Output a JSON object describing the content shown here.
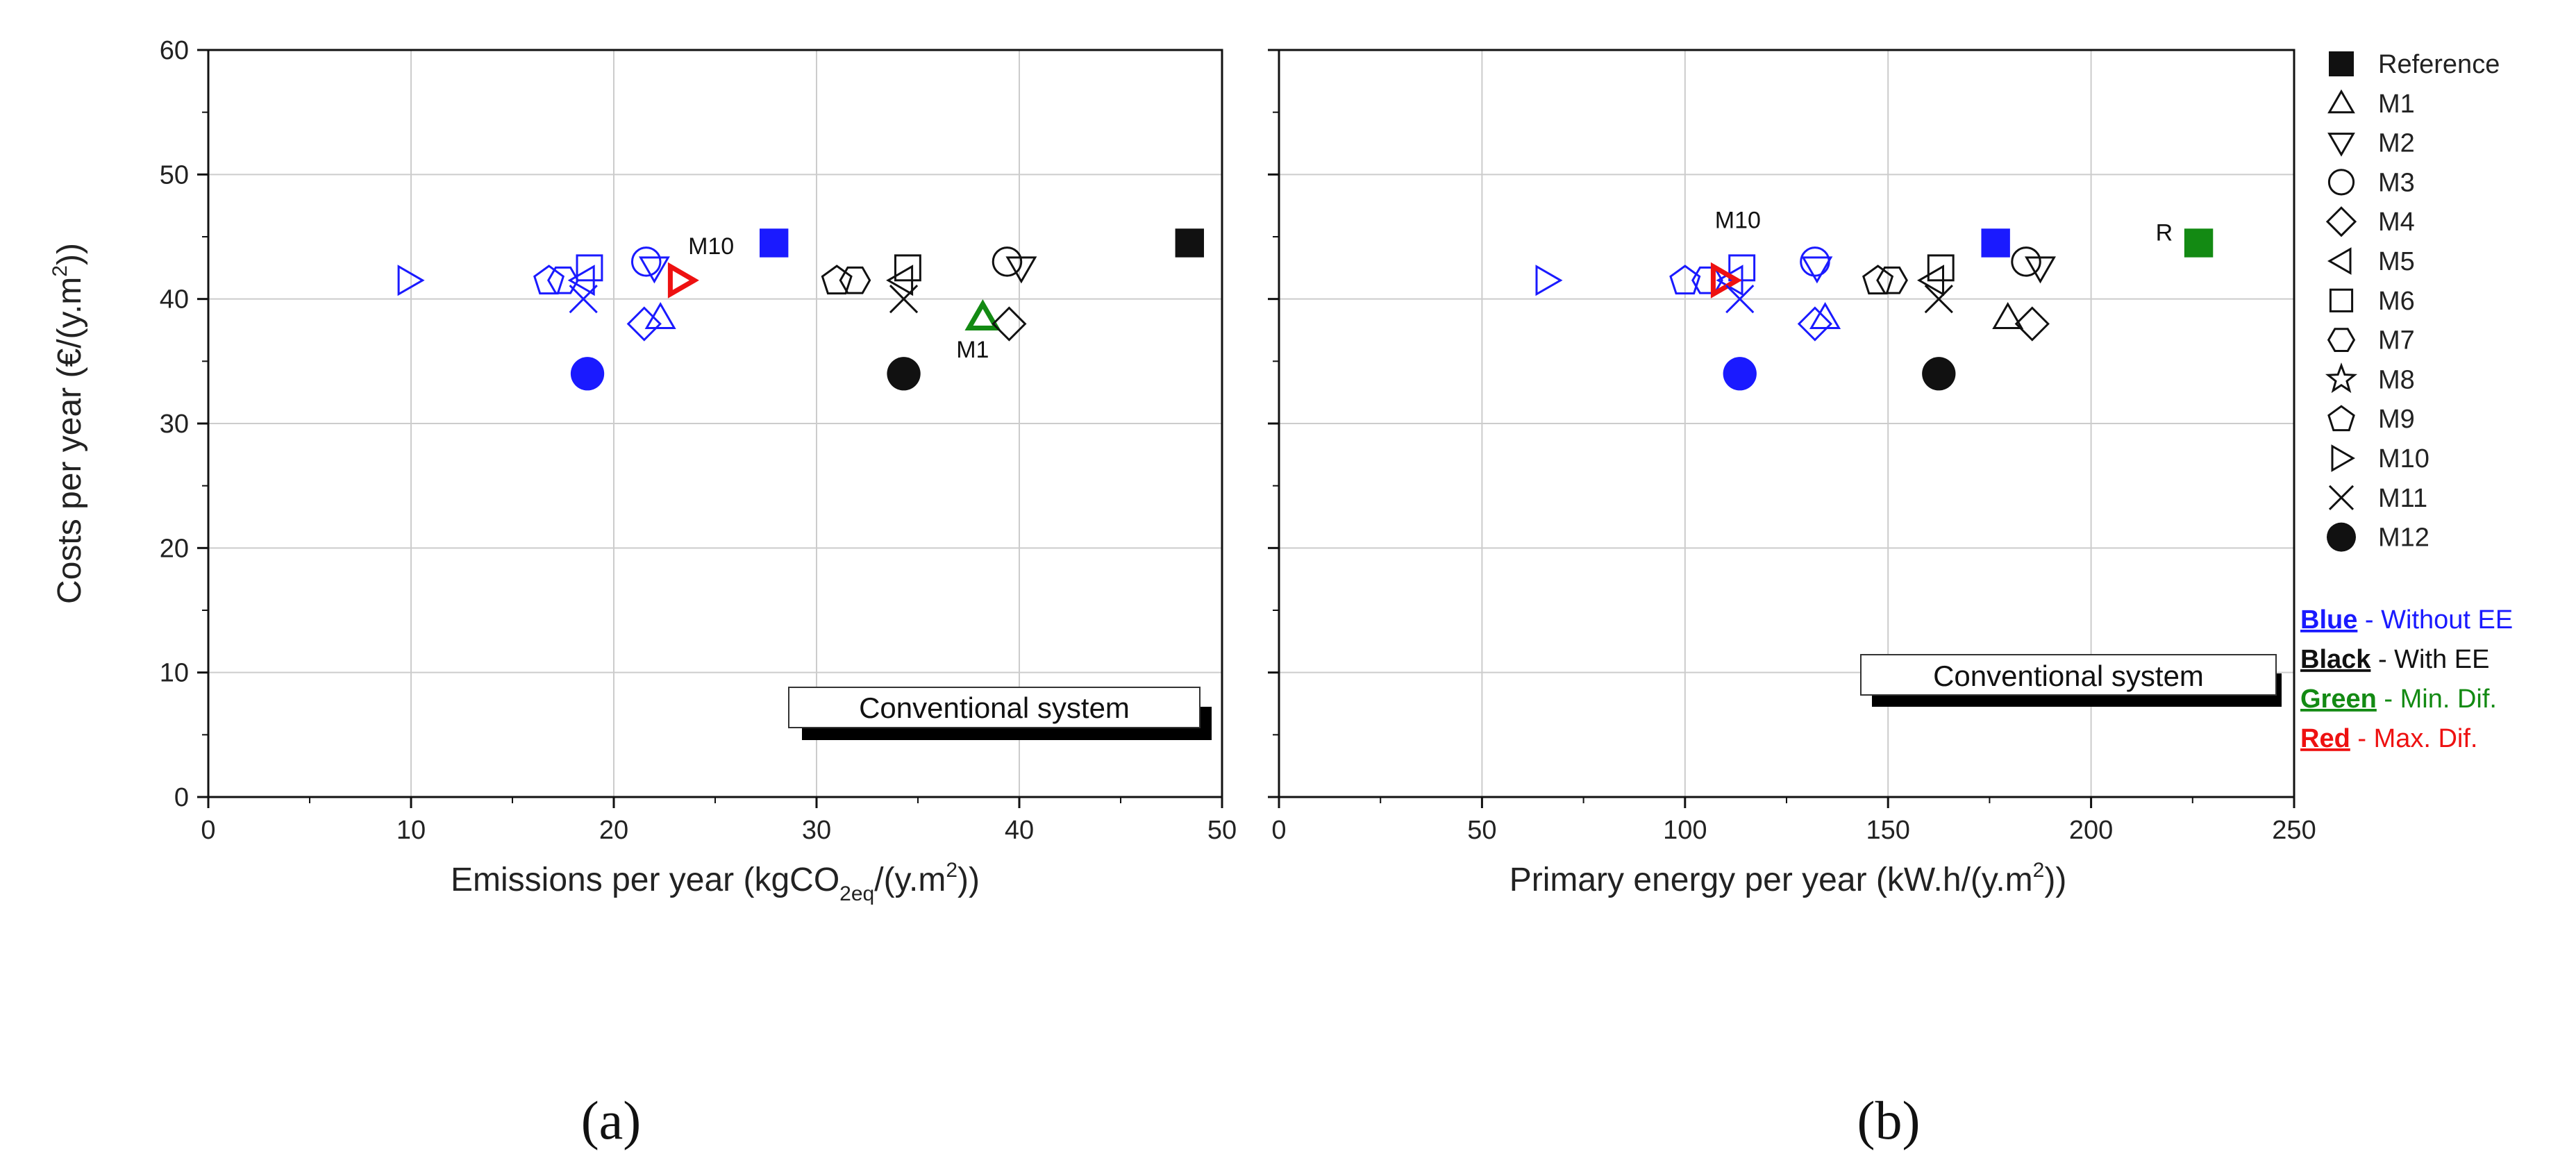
{
  "chart_data": [
    {
      "type": "scatter",
      "panel_label": "(a)",
      "xlabel": "Emissions per year (kgCO2eq/(y.m2))",
      "xlabel_parts": {
        "main": "Emissions per year (kgCO",
        "sub": "2eq",
        "mid": "/(y.m",
        "sup": "2",
        "end": "))"
      },
      "ylabel": "Costs per year (€/(y.m2))",
      "ylabel_parts": {
        "main": "Costs per year (€/(y.m",
        "sup": "2",
        "end": "))"
      },
      "xlim": [
        0,
        50
      ],
      "ylim": [
        0,
        60
      ],
      "xticks": [
        0,
        10,
        20,
        30,
        40,
        50
      ],
      "yticks": [
        0,
        10,
        20,
        30,
        40,
        50,
        60
      ],
      "grid": true,
      "box_label": "Conventional system",
      "points": [
        {
          "series": "Reference",
          "group": "without_ee",
          "x": 27.9,
          "y": 44.5
        },
        {
          "series": "Reference",
          "group": "with_ee",
          "x": 48.4,
          "y": 44.5
        },
        {
          "series": "M1",
          "group": "without_ee",
          "x": 22.3,
          "y": 38.5
        },
        {
          "series": "M1",
          "group": "min_dif",
          "x": 38.2,
          "y": 38.5
        },
        {
          "series": "M2",
          "group": "without_ee",
          "x": 22.0,
          "y": 42.5
        },
        {
          "series": "M2",
          "group": "with_ee",
          "x": 40.1,
          "y": 42.5
        },
        {
          "series": "M3",
          "group": "without_ee",
          "x": 21.6,
          "y": 43.0
        },
        {
          "series": "M3",
          "group": "with_ee",
          "x": 39.4,
          "y": 43.0
        },
        {
          "series": "M4",
          "group": "without_ee",
          "x": 21.5,
          "y": 38.0
        },
        {
          "series": "M4",
          "group": "with_ee",
          "x": 39.5,
          "y": 38.0
        },
        {
          "series": "M5",
          "group": "without_ee",
          "x": 18.5,
          "y": 41.5
        },
        {
          "series": "M5",
          "group": "with_ee",
          "x": 34.2,
          "y": 41.5
        },
        {
          "series": "M6",
          "group": "without_ee",
          "x": 18.8,
          "y": 42.5
        },
        {
          "series": "M6",
          "group": "with_ee",
          "x": 34.5,
          "y": 42.5
        },
        {
          "series": "M7",
          "group": "without_ee",
          "x": 17.5,
          "y": 41.5
        },
        {
          "series": "M7",
          "group": "with_ee",
          "x": 31.9,
          "y": 41.5
        },
        {
          "series": "M9",
          "group": "without_ee",
          "x": 16.8,
          "y": 41.5
        },
        {
          "series": "M9",
          "group": "with_ee",
          "x": 31.0,
          "y": 41.5
        },
        {
          "series": "M10",
          "group": "without_ee",
          "x": 9.9,
          "y": 41.5
        },
        {
          "series": "M10",
          "group": "max_dif",
          "x": 23.3,
          "y": 41.5
        },
        {
          "series": "M11",
          "group": "without_ee",
          "x": 18.5,
          "y": 40.0
        },
        {
          "series": "M11",
          "group": "with_ee",
          "x": 34.3,
          "y": 40.0
        },
        {
          "series": "M12",
          "group": "without_ee",
          "x": 18.7,
          "y": 34.0
        },
        {
          "series": "M12",
          "group": "with_ee",
          "x": 34.3,
          "y": 34.0
        }
      ],
      "annotations": [
        {
          "text": "M10",
          "x": 24.8,
          "y": 43.6
        },
        {
          "text": "M1",
          "x": 37.7,
          "y": 35.3
        }
      ]
    },
    {
      "type": "scatter",
      "panel_label": "(b)",
      "xlabel": "Primary energy per year (kW.h/(y.m2))",
      "xlabel_parts": {
        "main": "Primary energy per year (kW.h/(y.m",
        "sup": "2",
        "end": "))"
      },
      "xlim": [
        0,
        250
      ],
      "ylim": [
        0,
        60
      ],
      "xticks": [
        0,
        50,
        100,
        150,
        200,
        250
      ],
      "grid": true,
      "box_label": "Conventional system",
      "points": [
        {
          "series": "Reference",
          "group": "without_ee",
          "x": 176.5,
          "y": 44.5
        },
        {
          "series": "Reference",
          "group": "min_dif",
          "x": 226.5,
          "y": 44.5
        },
        {
          "series": "M1",
          "group": "without_ee",
          "x": 134.5,
          "y": 38.5
        },
        {
          "series": "M1",
          "group": "with_ee",
          "x": 179.5,
          "y": 38.5
        },
        {
          "series": "M2",
          "group": "without_ee",
          "x": 132.5,
          "y": 42.5
        },
        {
          "series": "M2",
          "group": "with_ee",
          "x": 187.5,
          "y": 42.5
        },
        {
          "series": "M3",
          "group": "without_ee",
          "x": 132.0,
          "y": 43.0
        },
        {
          "series": "M3",
          "group": "with_ee",
          "x": 184.0,
          "y": 43.0
        },
        {
          "series": "M4",
          "group": "without_ee",
          "x": 132.0,
          "y": 38.0
        },
        {
          "series": "M4",
          "group": "with_ee",
          "x": 185.5,
          "y": 38.0
        },
        {
          "series": "M5",
          "group": "without_ee",
          "x": 111.5,
          "y": 41.5
        },
        {
          "series": "M5",
          "group": "with_ee",
          "x": 161.0,
          "y": 41.5
        },
        {
          "series": "M6",
          "group": "without_ee",
          "x": 114.0,
          "y": 42.5
        },
        {
          "series": "M6",
          "group": "with_ee",
          "x": 163.0,
          "y": 42.5
        },
        {
          "series": "M7",
          "group": "without_ee",
          "x": 105.5,
          "y": 41.5
        },
        {
          "series": "M7",
          "group": "with_ee",
          "x": 151.0,
          "y": 41.5
        },
        {
          "series": "M9",
          "group": "without_ee",
          "x": 100.0,
          "y": 41.5
        },
        {
          "series": "M9",
          "group": "with_ee",
          "x": 147.5,
          "y": 41.5
        },
        {
          "series": "M10",
          "group": "without_ee",
          "x": 66.0,
          "y": 41.5
        },
        {
          "series": "M10",
          "group": "max_dif",
          "x": 109.5,
          "y": 41.5
        },
        {
          "series": "M11",
          "group": "without_ee",
          "x": 113.5,
          "y": 40.0
        },
        {
          "series": "M11",
          "group": "with_ee",
          "x": 162.5,
          "y": 40.0
        },
        {
          "series": "M12",
          "group": "without_ee",
          "x": 113.5,
          "y": 34.0
        },
        {
          "series": "M12",
          "group": "with_ee",
          "x": 162.5,
          "y": 34.0
        }
      ],
      "annotations": [
        {
          "text": "M10",
          "x": 113.0,
          "y": 45.7
        },
        {
          "text": "R",
          "x": 218.0,
          "y": 44.7
        }
      ]
    }
  ],
  "legend": {
    "entries": [
      {
        "label": "Reference",
        "marker": "square-filled"
      },
      {
        "label": "M1",
        "marker": "triangle-up"
      },
      {
        "label": "M2",
        "marker": "triangle-down"
      },
      {
        "label": "M3",
        "marker": "circle"
      },
      {
        "label": "M4",
        "marker": "diamond"
      },
      {
        "label": "M5",
        "marker": "triangle-left"
      },
      {
        "label": "M6",
        "marker": "square"
      },
      {
        "label": "M7",
        "marker": "hexagon"
      },
      {
        "label": "M8",
        "marker": "star"
      },
      {
        "label": "M9",
        "marker": "pentagon"
      },
      {
        "label": "M10",
        "marker": "triangle-right"
      },
      {
        "label": "M11",
        "marker": "cross"
      },
      {
        "label": "M12",
        "marker": "circle-filled"
      }
    ]
  },
  "markers_by_series": {
    "Reference": "square-filled",
    "M1": "triangle-up",
    "M2": "triangle-down",
    "M3": "circle",
    "M4": "diamond",
    "M5": "triangle-left",
    "M6": "square",
    "M7": "hexagon",
    "M8": "star",
    "M9": "pentagon",
    "M10": "triangle-right",
    "M11": "cross",
    "M12": "circle-filled"
  },
  "color_key": [
    {
      "group": "without_ee",
      "key": "Blue",
      "desc": " - Without EE",
      "color": "#1a1aff"
    },
    {
      "group": "with_ee",
      "key": "Black",
      "desc": " - With EE",
      "color": "#111111"
    },
    {
      "group": "min_dif",
      "key": "Green",
      "desc": " - Min. Dif.",
      "color": "#138a13"
    },
    {
      "group": "max_dif",
      "key": "Red",
      "desc": " - Max. Dif.",
      "color": "#ee1111"
    }
  ]
}
